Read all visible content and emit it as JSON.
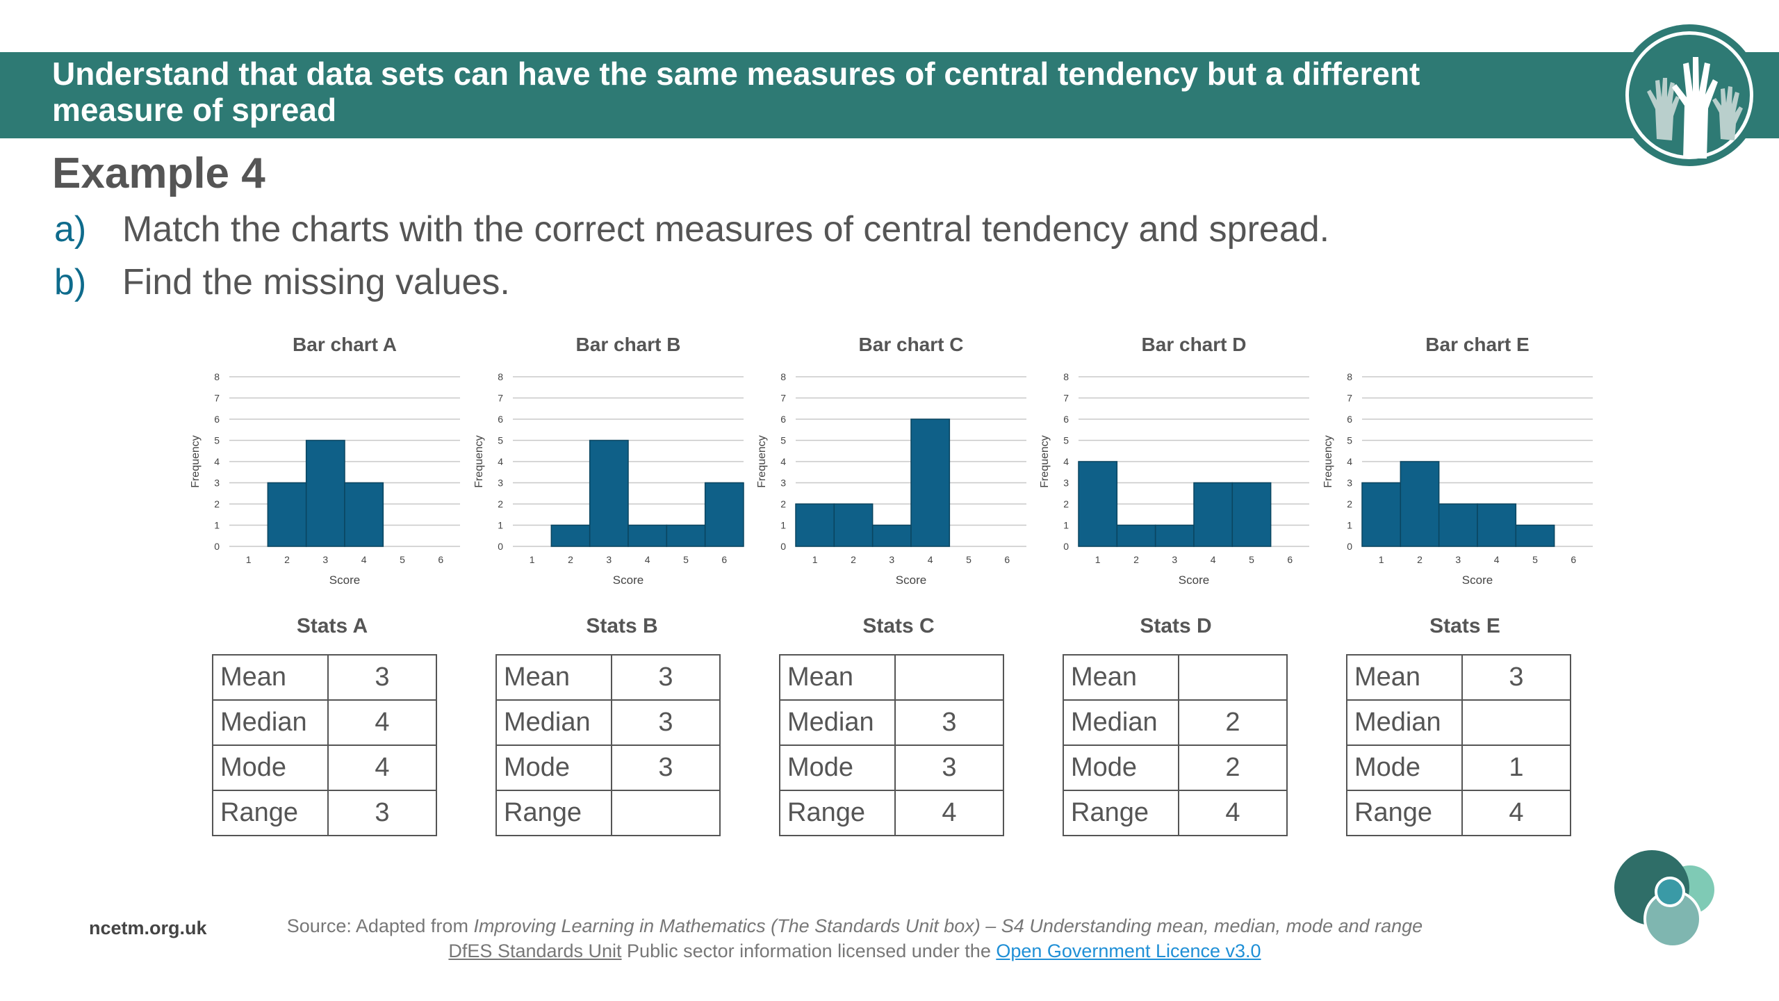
{
  "header": {
    "title_line1": "Understand that data sets can have the same measures of central tendency but a different",
    "title_line2": "measure of spread",
    "color": "#2e7a74"
  },
  "example": {
    "title": "Example 4",
    "parts": [
      {
        "letter": "a)",
        "text": "Match the charts with the correct measures of central tendency and spread."
      },
      {
        "letter": "b)",
        "text": "Find the missing values."
      }
    ]
  },
  "chart_data": [
    {
      "type": "bar",
      "title": "Bar chart A",
      "xlabel": "Score",
      "ylabel": "Frequency",
      "categories": [
        "1",
        "2",
        "3",
        "4",
        "5",
        "6"
      ],
      "values": [
        0,
        3,
        5,
        3,
        0,
        0
      ],
      "ylim": [
        0,
        8
      ],
      "grid": true,
      "color": "#0f6088"
    },
    {
      "type": "bar",
      "title": "Bar chart B",
      "xlabel": "Score",
      "ylabel": "Frequency",
      "categories": [
        "1",
        "2",
        "3",
        "4",
        "5",
        "6"
      ],
      "values": [
        0,
        1,
        5,
        1,
        1,
        3
      ],
      "ylim": [
        0,
        8
      ],
      "grid": true,
      "color": "#0f6088"
    },
    {
      "type": "bar",
      "title": "Bar chart C",
      "xlabel": "Score",
      "ylabel": "Frequency",
      "categories": [
        "1",
        "2",
        "3",
        "4",
        "5",
        "6"
      ],
      "values": [
        2,
        2,
        1,
        6,
        0,
        0
      ],
      "ylim": [
        0,
        8
      ],
      "grid": true,
      "color": "#0f6088"
    },
    {
      "type": "bar",
      "title": "Bar chart D",
      "xlabel": "Score",
      "ylabel": "Frequency",
      "categories": [
        "1",
        "2",
        "3",
        "4",
        "5",
        "6"
      ],
      "values": [
        4,
        1,
        1,
        3,
        3,
        0
      ],
      "ylim": [
        0,
        8
      ],
      "grid": true,
      "color": "#0f6088"
    },
    {
      "type": "bar",
      "title": "Bar chart E",
      "xlabel": "Score",
      "ylabel": "Frequency",
      "categories": [
        "1",
        "2",
        "3",
        "4",
        "5",
        "6"
      ],
      "values": [
        3,
        4,
        2,
        2,
        1,
        0
      ],
      "ylim": [
        0,
        8
      ],
      "grid": true,
      "color": "#0f6088"
    }
  ],
  "stats": [
    {
      "title": "Stats A",
      "rows": [
        [
          "Mean",
          "3"
        ],
        [
          "Median",
          "4"
        ],
        [
          "Mode",
          "4"
        ],
        [
          "Range",
          "3"
        ]
      ]
    },
    {
      "title": "Stats B",
      "rows": [
        [
          "Mean",
          "3"
        ],
        [
          "Median",
          "3"
        ],
        [
          "Mode",
          "3"
        ],
        [
          "Range",
          ""
        ]
      ]
    },
    {
      "title": "Stats C",
      "rows": [
        [
          "Mean",
          ""
        ],
        [
          "Median",
          "3"
        ],
        [
          "Mode",
          "3"
        ],
        [
          "Range",
          "4"
        ]
      ]
    },
    {
      "title": "Stats D",
      "rows": [
        [
          "Mean",
          ""
        ],
        [
          "Median",
          "2"
        ],
        [
          "Mode",
          "2"
        ],
        [
          "Range",
          "4"
        ]
      ]
    },
    {
      "title": "Stats E",
      "rows": [
        [
          "Mean",
          "3"
        ],
        [
          "Median",
          ""
        ],
        [
          "Mode",
          "1"
        ],
        [
          "Range",
          "4"
        ]
      ]
    }
  ],
  "footer": {
    "site": "ncetm.org.uk",
    "source_prefix": "Source: Adapted from ",
    "source_italic": "Improving Learning in Mathematics (The Standards Unit box) – S4 Understanding mean, median, mode and range",
    "line2_link1": "DfES Standards Unit",
    "line2_middle": " Public sector information licensed under the ",
    "line2_link2": "Open Government Licence v3.0"
  }
}
